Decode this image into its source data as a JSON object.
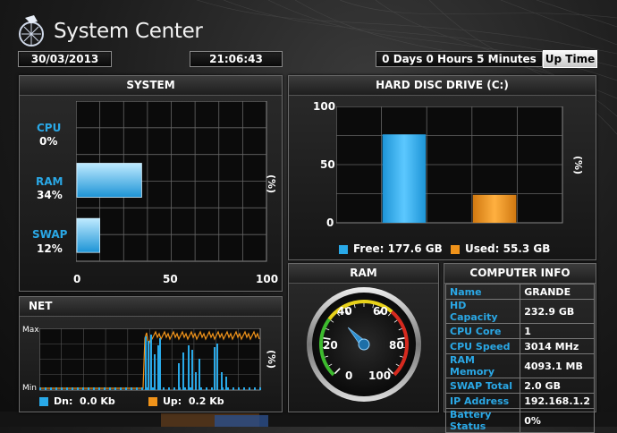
{
  "app": {
    "title": "System Center"
  },
  "header": {
    "date": "30/03/2013",
    "time": "21:06:43",
    "uptime_value": "0 Days 0 Hours 5 Minutes",
    "uptime_button": "Up Time"
  },
  "system": {
    "title": "SYSTEM",
    "unit_label": "(%)",
    "ticks": [
      "0",
      "50",
      "100"
    ],
    "rows": [
      {
        "label": "CPU",
        "value": "0%",
        "percent": 0
      },
      {
        "label": "RAM",
        "value": "34%",
        "percent": 34
      },
      {
        "label": "SWAP",
        "value": "12%",
        "percent": 12
      }
    ]
  },
  "disk": {
    "title": "HARD DISC DRIVE (C:)",
    "unit_label": "(%)",
    "yticks": [
      "100",
      "50",
      "0"
    ],
    "free_label": "Free: 177.6 GB",
    "used_label": "Used: 55.3 GB",
    "free_percent": 76,
    "used_percent": 24,
    "colors": {
      "free": "#29a9e8",
      "used": "#f0931a"
    }
  },
  "ram": {
    "title": "RAM",
    "gauge_value": 34,
    "ticks": [
      "0",
      "20",
      "40",
      "60",
      "80",
      "100"
    ]
  },
  "net": {
    "title": "NET",
    "max_label": "Max",
    "min_label": "Min",
    "unit_label": "(%)",
    "dn_label": "Dn:",
    "dn_value": "0.0 Kb",
    "up_label": "Up:",
    "up_value": "0.2 Kb"
  },
  "computer_info": {
    "title": "COMPUTER INFO",
    "rows": [
      {
        "key": "Name",
        "value": "GRANDE"
      },
      {
        "key": "HD Capacity",
        "value": "232.9 GB"
      },
      {
        "key": "CPU Core",
        "value": "1"
      },
      {
        "key": "CPU Speed",
        "value": "3014 MHz"
      },
      {
        "key": "RAM Memory",
        "value": "4093.1 MB"
      },
      {
        "key": "SWAP Total",
        "value": "2.0 GB"
      },
      {
        "key": "IP Address",
        "value": "192.168.1.2"
      },
      {
        "key": "Battery Status",
        "value": "0%"
      }
    ]
  }
}
